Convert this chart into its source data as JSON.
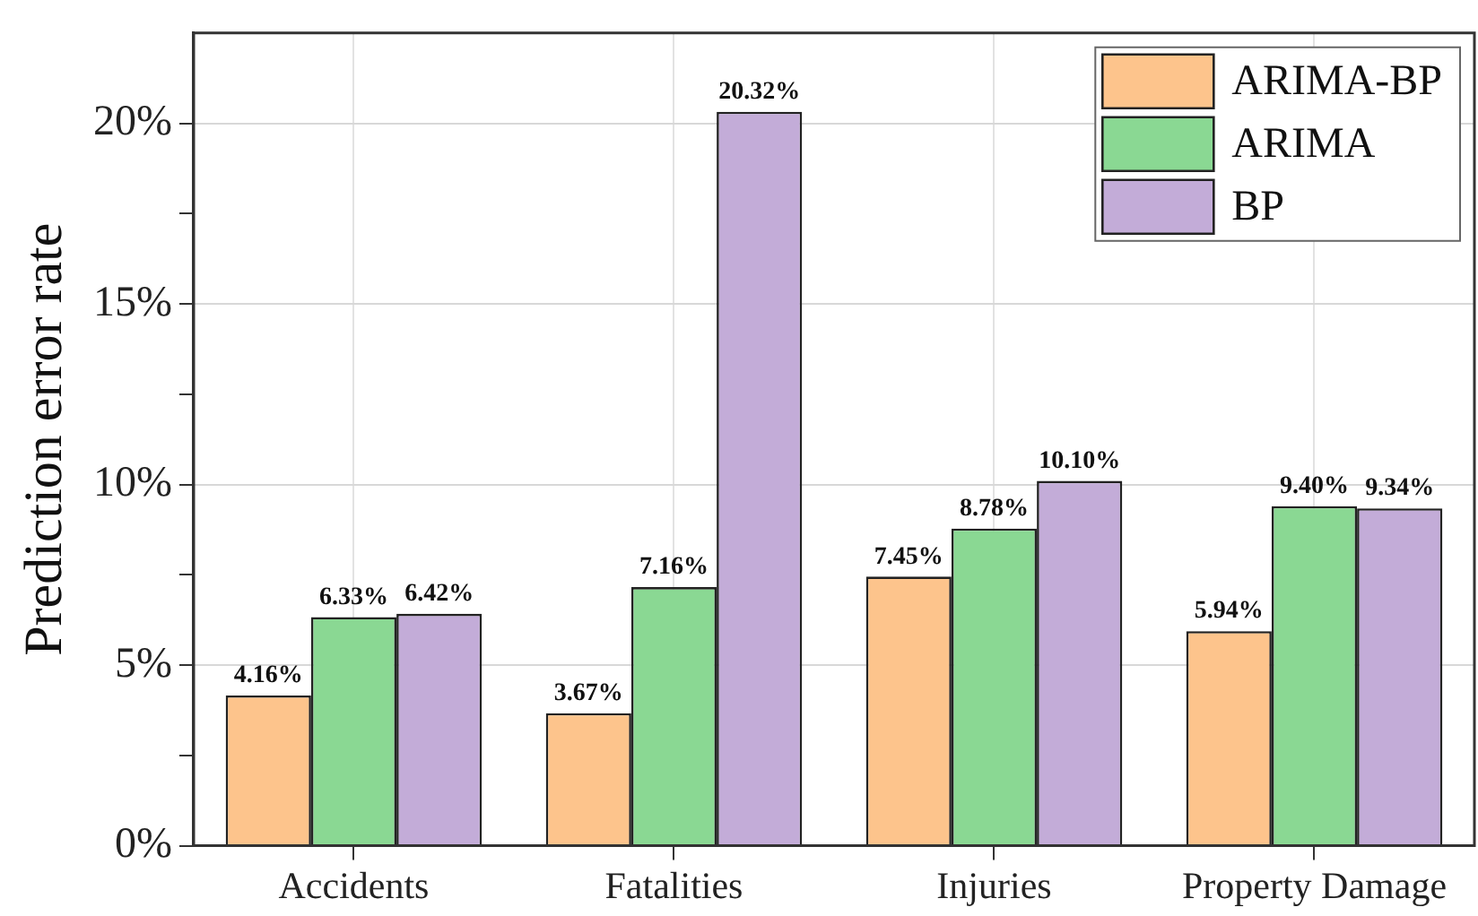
{
  "chart_data": {
    "type": "bar",
    "ylabel": "Prediction error rate",
    "categories": [
      "Accidents",
      "Fatalities",
      "Injuries",
      "Property Damage"
    ],
    "series": [
      {
        "name": "ARIMA-BP",
        "color": "#fdc48c",
        "values": [
          4.16,
          3.67,
          7.45,
          5.94
        ],
        "value_labels": [
          "4.16%",
          "3.67%",
          "7.45%",
          "5.94%"
        ]
      },
      {
        "name": "ARIMA",
        "color": "#8ad893",
        "values": [
          6.33,
          7.16,
          8.78,
          9.4
        ],
        "value_labels": [
          "6.33%",
          "7.16%",
          "8.78%",
          "9.40%"
        ]
      },
      {
        "name": "BP",
        "color": "#c3acd8",
        "values": [
          6.42,
          20.32,
          10.1,
          9.34
        ],
        "value_labels": [
          "6.42%",
          "20.32%",
          "10.10%",
          "9.34%"
        ]
      }
    ],
    "ylim": [
      0,
      22.5
    ],
    "yticks": [
      {
        "value": 0,
        "label": "0%"
      },
      {
        "value": 2.5,
        "label": null
      },
      {
        "value": 5,
        "label": "5%"
      },
      {
        "value": 7.5,
        "label": null
      },
      {
        "value": 10,
        "label": "10%"
      },
      {
        "value": 12.5,
        "label": null
      },
      {
        "value": 15,
        "label": "15%"
      },
      {
        "value": 17.5,
        "label": null
      },
      {
        "value": 20,
        "label": "20%"
      }
    ],
    "grid": true,
    "legend": "top right"
  }
}
